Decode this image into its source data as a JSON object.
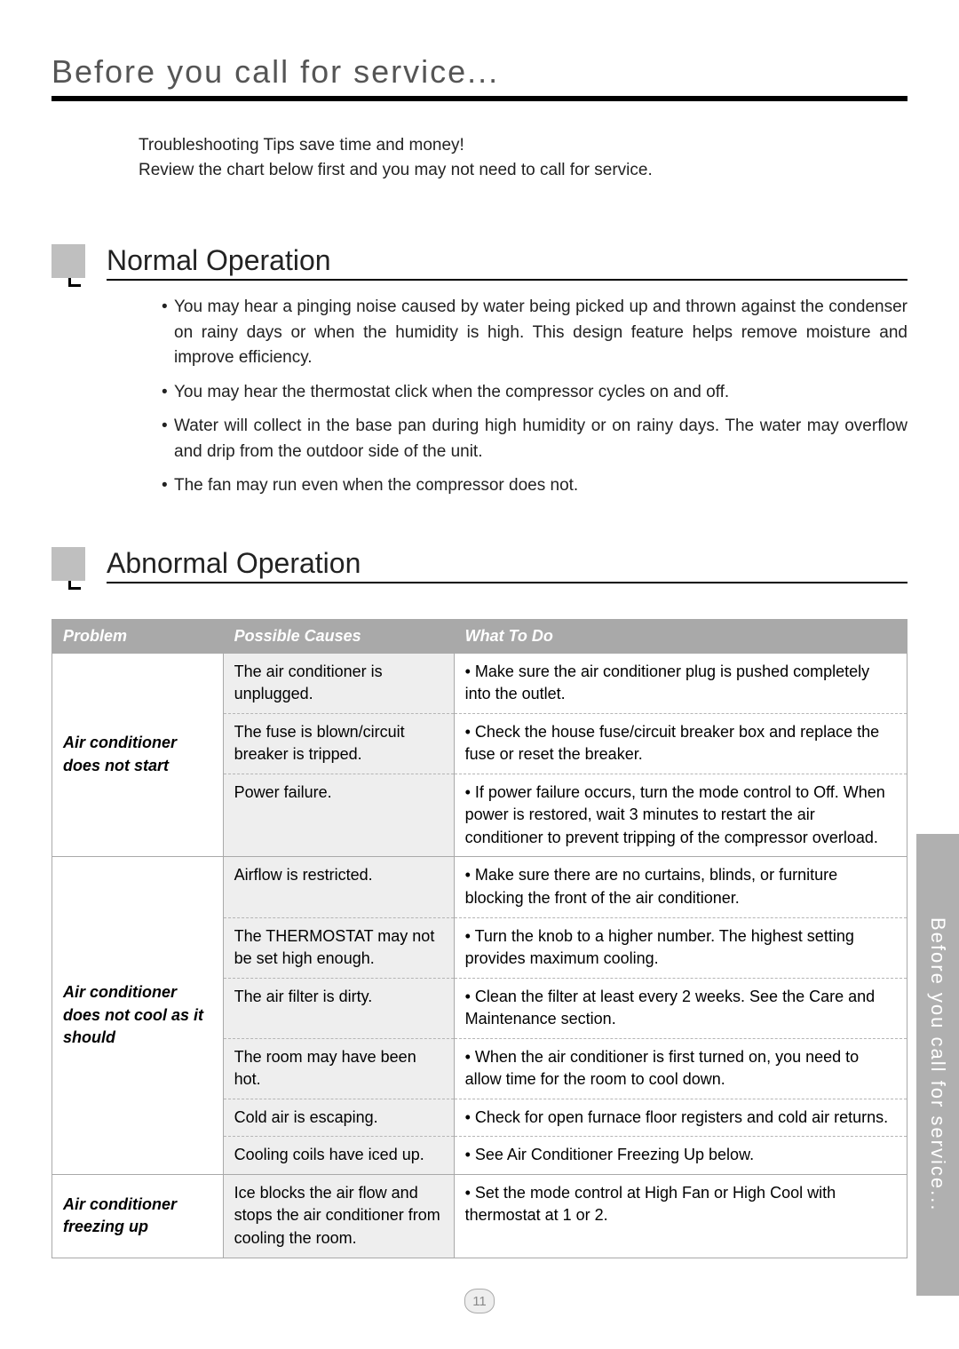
{
  "page": {
    "title": "Before you call for service...",
    "intro_line1": "Troubleshooting Tips save time and money!",
    "intro_line2": "Review the chart below first and you may not need to call for service.",
    "page_number": "11",
    "side_tab": "Before you call for service..."
  },
  "normal": {
    "title": "Normal Operation",
    "items": [
      "You may hear a pinging noise caused by water being picked up and thrown against the condenser on rainy days or when the humidity is high. This design feature helps remove moisture and improve efficiency.",
      "You may hear the thermostat click when the compressor cycles on and off.",
      "Water will collect in the base pan during high humidity or on rainy days. The water may overflow and drip from the outdoor side of the unit.",
      "The fan may run even when the compressor does not."
    ]
  },
  "abnormal": {
    "title": "Abnormal Operation",
    "headers": {
      "problem": "Problem",
      "cause": "Possible Causes",
      "what": "What To Do"
    },
    "groups": [
      {
        "problem": "Air conditioner does not start",
        "rows": [
          {
            "cause": "The air conditioner is unplugged.",
            "what": "• Make sure the air conditioner plug is pushed completely into the outlet."
          },
          {
            "cause": "The fuse is blown/circuit breaker is tripped.",
            "what": "• Check the house fuse/circuit breaker box and replace the fuse or reset the breaker."
          },
          {
            "cause": "Power failure.",
            "what": "• If power failure occurs, turn the mode control to Off. When power is restored, wait 3 minutes to restart the air conditioner to prevent tripping of the compressor overload."
          }
        ]
      },
      {
        "problem": "Air conditioner does not cool as it should",
        "rows": [
          {
            "cause": "Airflow is restricted.",
            "what": "• Make sure there are no curtains, blinds, or furniture blocking the front of the air conditioner."
          },
          {
            "cause": "The THERMOSTAT may not be set high enough.",
            "what": "• Turn the knob to a higher number. The highest setting provides maximum cooling."
          },
          {
            "cause": "The air filter is dirty.",
            "what": "• Clean the filter at least every 2 weeks. See the Care and Maintenance section."
          },
          {
            "cause": "The room may have been hot.",
            "what": "• When the air conditioner is first turned on, you need to allow time for the room to cool down."
          },
          {
            "cause": "Cold air is escaping.",
            "what": "• Check for open furnace floor registers and cold air returns."
          },
          {
            "cause": "Cooling coils have iced up.",
            "what": "• See Air Conditioner Freezing Up below."
          }
        ]
      },
      {
        "problem": "Air conditioner freezing up",
        "rows": [
          {
            "cause": "Ice blocks the air flow and stops the air conditioner from cooling the room.",
            "what": "• Set the mode control at High Fan or High Cool with thermostat at 1 or 2."
          }
        ]
      }
    ]
  },
  "style": {
    "header_bg": "#a9a9a9",
    "header_fg": "#ffffff",
    "cause_bg": "#eeeeee",
    "border": "#a9a9a9",
    "dash": "#b5b5b5",
    "square": "#bfbfbf",
    "rule": "#000000",
    "page_bg": "#ffffff"
  }
}
